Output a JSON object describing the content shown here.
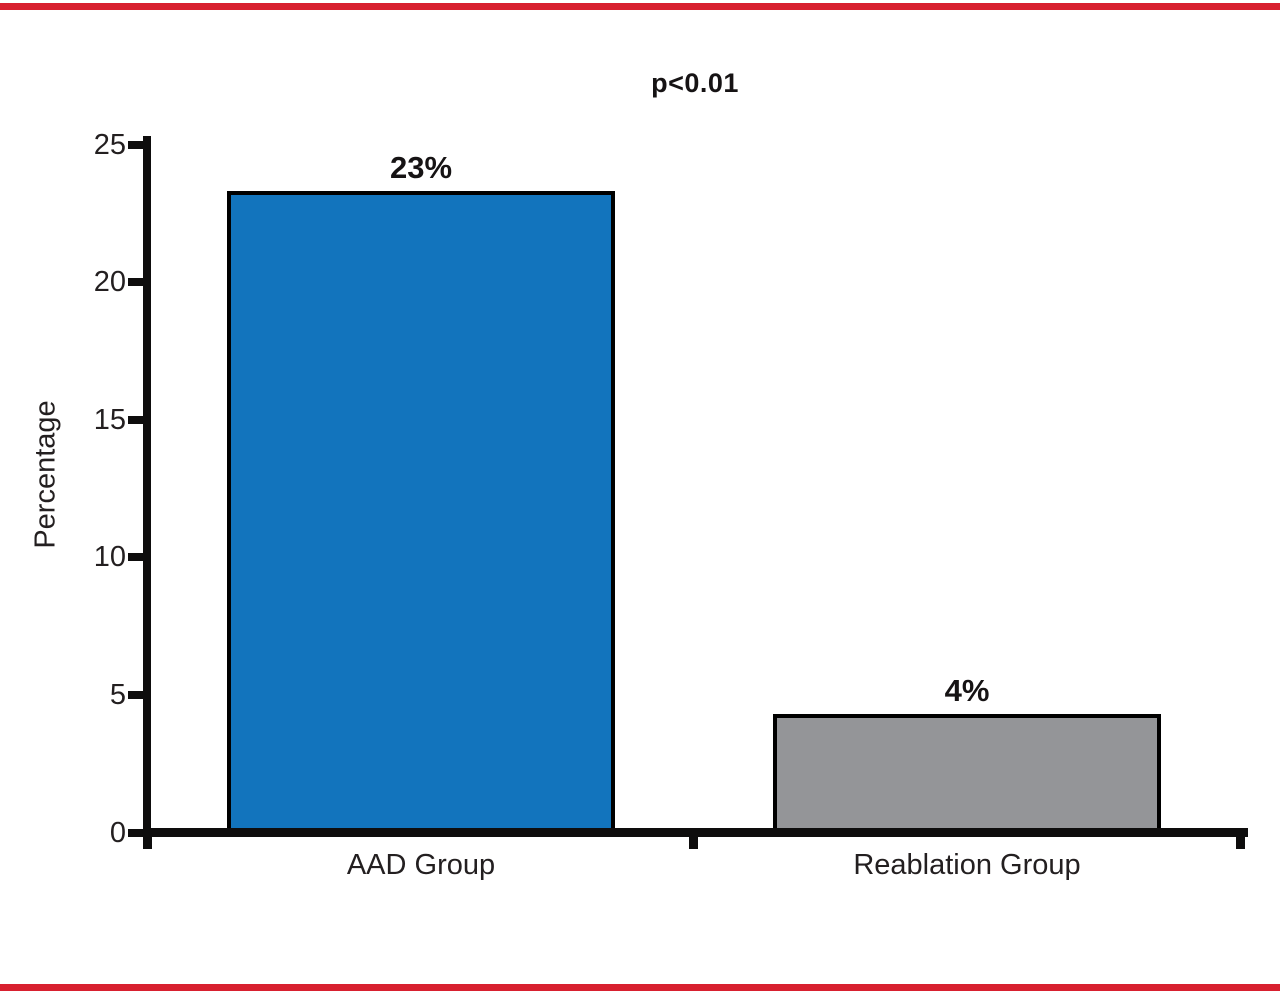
{
  "page": {
    "background": "#ffffff",
    "accent_rule_color": "#d8202f"
  },
  "chart_data": {
    "type": "bar",
    "annotation": "p<0.01",
    "categories": [
      "AAD Group",
      "Reablation Group"
    ],
    "values": [
      23,
      4
    ],
    "value_labels": [
      "23%",
      "4%"
    ],
    "bar_colors": [
      "#1274bd",
      "#949598"
    ],
    "bar_border_color": "#000000",
    "axis_color": "#0e0d0d",
    "xlabel": "",
    "ylabel": "Percentage",
    "ylim": [
      0,
      25
    ],
    "yticks": [
      0,
      5,
      10,
      15,
      20,
      25
    ],
    "grid": false,
    "legend": "none"
  }
}
